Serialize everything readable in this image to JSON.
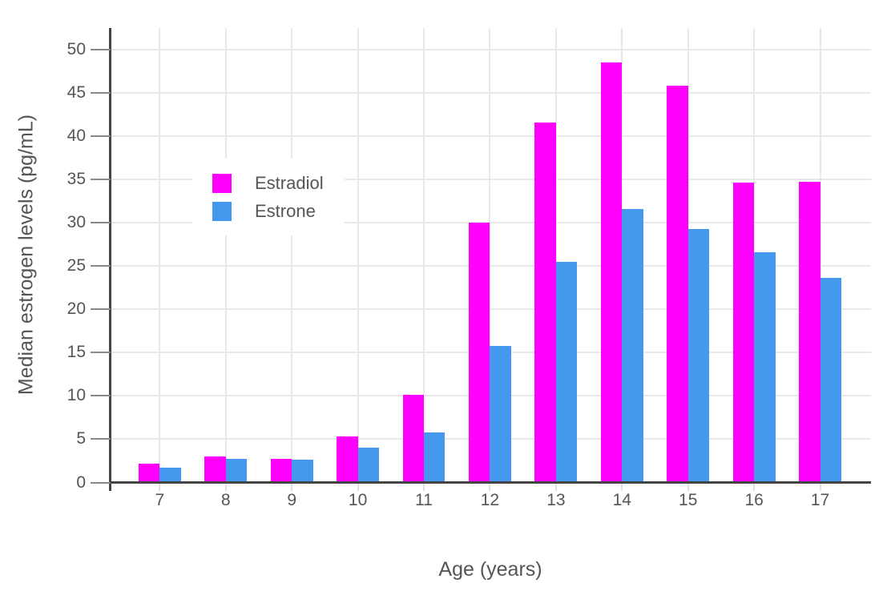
{
  "chart_data": {
    "type": "bar",
    "title": "",
    "categories": [
      "7",
      "8",
      "9",
      "10",
      "11",
      "12",
      "13",
      "14",
      "15",
      "16",
      "17"
    ],
    "series": [
      {
        "name": "Estradiol",
        "color": "#FF00FF",
        "values": [
          2.2,
          3.0,
          2.7,
          5.3,
          10.1,
          30.0,
          41.6,
          48.5,
          45.8,
          34.6,
          34.7
        ]
      },
      {
        "name": "Estrone",
        "color": "#4499EE",
        "values": [
          1.7,
          2.7,
          2.6,
          4.0,
          5.8,
          15.8,
          25.5,
          31.6,
          29.3,
          26.6,
          23.6
        ]
      }
    ],
    "xlabel": "Age (years)",
    "ylabel": "Median estrogen levels (pg/mL)",
    "ylim": [
      0,
      52.5
    ],
    "yticks": [
      0,
      5,
      10,
      15,
      20,
      25,
      30,
      35,
      40,
      45,
      50
    ],
    "grid": true,
    "legend_position": "inside-top-left",
    "colors": {
      "grid": "#E9E9E9",
      "axis": "#444444",
      "ytick": "#888888",
      "xtick": "#E0E0E0",
      "text": "#555555",
      "background": "#FFFFFF"
    }
  }
}
